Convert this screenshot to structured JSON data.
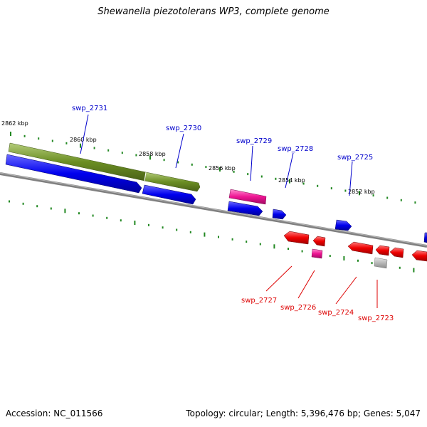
{
  "title": "Shewanella piezotolerans WP3, complete genome",
  "footer": {
    "accession": "Accession: NC_011566",
    "summary": "Topology: circular; Length: 5,396,476 bp; Genes: 5,047"
  },
  "scale_labels": [
    "2862 kbp",
    "2860 kbp",
    "2858 kbp",
    "2856 kbp",
    "2854 kbp",
    "2852 kbp"
  ],
  "gene_labels_forward": [
    "swp_2731",
    "swp_2730",
    "swp_2729",
    "swp_2728",
    "swp_2725"
  ],
  "gene_labels_reverse": [
    "swp_2727",
    "swp_2726",
    "swp_2724",
    "swp_2723"
  ],
  "colors": {
    "forward_label": "#0000cc",
    "reverse_label": "#dd0000",
    "tick": "#228822",
    "cds_forward": "#0000ee",
    "cds_reverse": "#ee0000",
    "gene_track": "#6b8e23",
    "rna": "#ee1493",
    "pseudo": "#b0b0b0",
    "backbone": "#808080"
  }
}
